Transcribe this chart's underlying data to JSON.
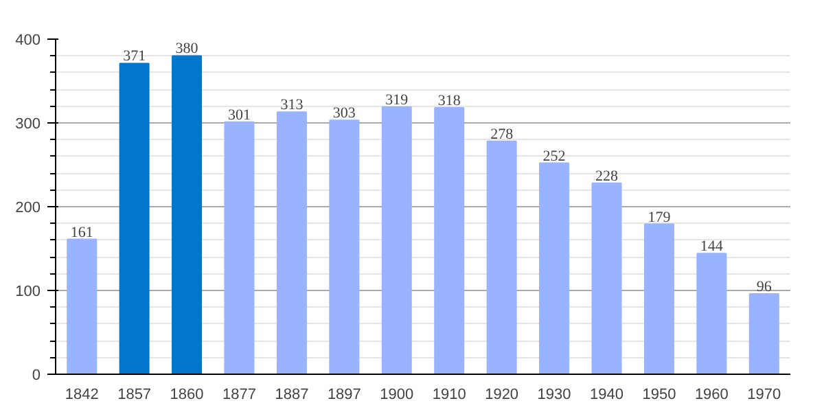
{
  "chart_data": {
    "type": "bar",
    "categories": [
      "1842",
      "1857",
      "1860",
      "1877",
      "1887",
      "1897",
      "1900",
      "1910",
      "1920",
      "1930",
      "1940",
      "1950",
      "1960",
      "1970"
    ],
    "values": [
      161,
      371,
      380,
      301,
      313,
      303,
      319,
      318,
      278,
      252,
      228,
      179,
      144,
      96
    ],
    "colors": [
      "#99b3ff",
      "#0077cc",
      "#0077cc",
      "#99b3ff",
      "#99b3ff",
      "#99b3ff",
      "#99b3ff",
      "#99b3ff",
      "#99b3ff",
      "#99b3ff",
      "#99b3ff",
      "#99b3ff",
      "#99b3ff",
      "#99b3ff"
    ],
    "ylim": [
      0,
      400
    ],
    "yticks": [
      0,
      100,
      200,
      300,
      400
    ],
    "grid": "y",
    "data_labels": true
  }
}
